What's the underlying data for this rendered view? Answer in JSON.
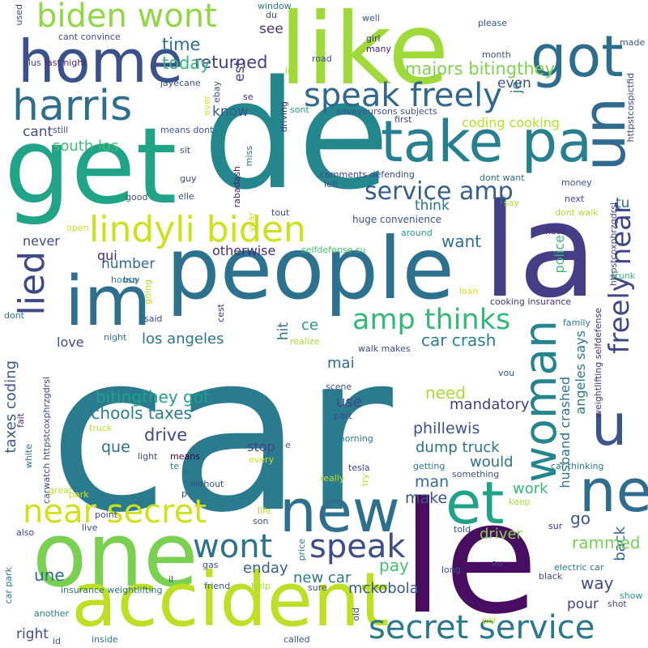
{
  "words": [
    {
      "text": "car",
      "color": "#2a7b8e"
    },
    {
      "text": "de",
      "color": "#25878e"
    },
    {
      "text": "le",
      "color": "#470d60"
    },
    {
      "text": "people",
      "color": "#2c718e"
    },
    {
      "text": "la",
      "color": "#433e85"
    },
    {
      "text": "get",
      "color": "#20a386"
    },
    {
      "text": "like",
      "color": "#9fda3a"
    },
    {
      "text": "one",
      "color": "#7ad151"
    },
    {
      "text": "accident",
      "color": "#bddf26"
    },
    {
      "text": "new",
      "color": "#2d708e"
    },
    {
      "text": "home",
      "color": "#3b518b"
    },
    {
      "text": "im",
      "color": "#2d718e"
    },
    {
      "text": "take pa",
      "color": "#27808e"
    },
    {
      "text": "got",
      "color": "#2d6e8e"
    },
    {
      "text": "un",
      "color": "#306a8e"
    },
    {
      "text": "woman",
      "color": "#25858e"
    },
    {
      "text": "ne",
      "color": "#2e6d8e"
    },
    {
      "text": "et",
      "color": "#1fa287"
    },
    {
      "text": "u",
      "color": "#3a548c"
    },
    {
      "text": "harris",
      "color": "#2e6f8e"
    },
    {
      "text": "biden wont",
      "color": "#8fd744"
    },
    {
      "text": "lied",
      "color": "#3e4989"
    },
    {
      "text": "lindyli biden",
      "color": "#cde11d"
    },
    {
      "text": "near secret",
      "color": "#d0e11c"
    },
    {
      "text": "speak freely",
      "color": "#31688e"
    },
    {
      "text": "wont",
      "color": "#2c728e"
    },
    {
      "text": "speak",
      "color": "#3d4d8a"
    },
    {
      "text": "secret service",
      "color": "#2a788e"
    },
    {
      "text": "freely",
      "color": "#3f4788"
    },
    {
      "text": "near",
      "color": "#3f4788"
    },
    {
      "text": "service amp",
      "color": "#355f8d"
    },
    {
      "text": "amp thinks",
      "color": "#35b779"
    },
    {
      "text": "majors bitingthey",
      "color": "#7fd34e"
    },
    {
      "text": "returned",
      "color": "#424086"
    },
    {
      "text": "time",
      "color": "#2d708e"
    },
    {
      "text": "today",
      "color": "#35b779"
    },
    {
      "text": "see",
      "color": "#46327e"
    },
    {
      "text": "est",
      "color": "#414487"
    },
    {
      "text": "even",
      "color": "#3b518b"
    },
    {
      "text": "je",
      "color": "#2c738e"
    },
    {
      "text": "know",
      "color": "#38588c"
    },
    {
      "text": "cant",
      "color": "#3d4e8a"
    },
    {
      "text": "south los",
      "color": "#3dbc74"
    },
    {
      "text": "coding cooking",
      "color": "#b5de2b"
    },
    {
      "text": "think",
      "color": "#2a768e"
    },
    {
      "text": "never",
      "color": "#3e4a89"
    },
    {
      "text": "want",
      "color": "#2c728e"
    },
    {
      "text": "otherwise",
      "color": "#472d7b"
    },
    {
      "text": "number",
      "color": "#306a8e"
    },
    {
      "text": "police",
      "color": "#3aba76"
    },
    {
      "text": "qui",
      "color": "#472f7d"
    },
    {
      "text": "tu",
      "color": "#306a8e"
    },
    {
      "text": "love",
      "color": "#3e4c8a"
    },
    {
      "text": "los angeles",
      "color": "#2a768e"
    },
    {
      "text": "ce",
      "color": "#1e9b8a"
    },
    {
      "text": "hit",
      "color": "#2b758e"
    },
    {
      "text": "car crash",
      "color": "#26828e"
    },
    {
      "text": "mai",
      "color": "#2e6d8e"
    },
    {
      "text": "angeles says",
      "color": "#29798e"
    },
    {
      "text": "taxes coding",
      "color": "#38588c"
    },
    {
      "text": "bitingthey got",
      "color": "#1fa088"
    },
    {
      "text": "need",
      "color": "#a8db34"
    },
    {
      "text": "mandatory",
      "color": "#423f85"
    },
    {
      "text": "husband crashed",
      "color": "#2c738e"
    },
    {
      "text": "use",
      "color": "#3e4a89"
    },
    {
      "text": "schools taxes",
      "color": "#27808e"
    },
    {
      "text": "phillewis",
      "color": "#3b528b"
    },
    {
      "text": "drive",
      "color": "#3f4889"
    },
    {
      "text": "que",
      "color": "#2e6f8e"
    },
    {
      "text": "dump truck",
      "color": "#2a768e"
    },
    {
      "text": "stop",
      "color": "#404688"
    },
    {
      "text": "would",
      "color": "#2c738e"
    },
    {
      "text": "man",
      "color": "#2e6e8e"
    },
    {
      "text": "work",
      "color": "#35b779"
    },
    {
      "text": "make",
      "color": "#3b528b"
    },
    {
      "text": "go",
      "color": "#38588c"
    },
    {
      "text": "back",
      "color": "#2f6b8e"
    },
    {
      "text": "rammed",
      "color": "#75d054"
    },
    {
      "text": "driver",
      "color": "#84d44b"
    },
    {
      "text": "enday",
      "color": "#35608d"
    },
    {
      "text": "pay",
      "color": "#45bf70"
    },
    {
      "text": "new car",
      "color": "#2a788e"
    },
    {
      "text": "mckobola",
      "color": "#38598c"
    },
    {
      "text": "way",
      "color": "#3e4a89"
    },
    {
      "text": "une",
      "color": "#2e6e8e"
    },
    {
      "text": "pour",
      "color": "#414487"
    },
    {
      "text": "right",
      "color": "#3d4e8a"
    },
    {
      "text": "insurance weightlifting",
      "color": "#2d708e"
    },
    {
      "text": "huge convenience",
      "color": "#3b528b"
    },
    {
      "text": "selfdefense su",
      "color": "#46c06f"
    },
    {
      "text": "cooking insurance",
      "color": "#45337d"
    },
    {
      "text": "httpstcospictfid",
      "color": "#3f4889"
    },
    {
      "text": "httpstcoxphrzgdrsl",
      "color": "#3f4889"
    },
    {
      "text": "weightlifting selfdefense",
      "color": "#46337e"
    },
    {
      "text": "saveyoursons subjects",
      "color": "#3b528b"
    },
    {
      "text": "comments defending",
      "color": "#404588"
    },
    {
      "text": "carwatch httpstcoxphrzgdrsl",
      "color": "#3e4989"
    },
    {
      "text": "plus",
      "color": "#404588"
    },
    {
      "text": "last night",
      "color": "#482475"
    },
    {
      "text": "jayecane",
      "color": "#3b518b"
    },
    {
      "text": "cant convince",
      "color": "#3e4c8a"
    },
    {
      "text": "girl",
      "color": "#453581"
    },
    {
      "text": "well",
      "color": "#3a548c"
    },
    {
      "text": "please",
      "color": "#3a548c"
    },
    {
      "text": "month",
      "color": "#3b528b"
    },
    {
      "text": "made",
      "color": "#38588c"
    },
    {
      "text": "many",
      "color": "#481f70"
    },
    {
      "text": "window",
      "color": "#2a788e"
    },
    {
      "text": "du",
      "color": "#3e4a89"
    },
    {
      "text": "used",
      "color": "#3e4989"
    },
    {
      "text": "road",
      "color": "#3d4e8a"
    },
    {
      "text": "let",
      "color": "#a2da37"
    },
    {
      "text": "ever",
      "color": "#c5e021"
    },
    {
      "text": "ebay",
      "color": "#3e4c8a"
    },
    {
      "text": "se",
      "color": "#472c7a"
    },
    {
      "text": "sont",
      "color": "#1f9e89"
    },
    {
      "text": "driving",
      "color": "#453781"
    },
    {
      "text": "first",
      "color": "#424186"
    },
    {
      "text": "still",
      "color": "#3b528b"
    },
    {
      "text": "means dont",
      "color": "#3b528b"
    },
    {
      "text": "sit",
      "color": "#3e4a89"
    },
    {
      "text": "guy",
      "color": "#404688"
    },
    {
      "text": "rabadash",
      "color": "#482071"
    },
    {
      "text": "miss",
      "color": "#2d718e"
    },
    {
      "text": "left",
      "color": "#3b528b"
    },
    {
      "text": "dont want",
      "color": "#2f6b8e"
    },
    {
      "text": "money",
      "color": "#3a548c"
    },
    {
      "text": "next",
      "color": "#414487"
    },
    {
      "text": "dont walk",
      "color": "#b0dd2f"
    },
    {
      "text": "say",
      "color": "#b8de29"
    },
    {
      "text": "elle",
      "color": "#3b528b"
    },
    {
      "text": "good",
      "color": "#3e4989"
    },
    {
      "text": "open",
      "color": "#cae11f"
    },
    {
      "text": "year",
      "color": "#c5e021"
    },
    {
      "text": "tout",
      "color": "#404688"
    },
    {
      "text": "around",
      "color": "#1f9e89"
    },
    {
      "text": "hate",
      "color": "#482878"
    },
    {
      "text": "trunk",
      "color": "#37b878"
    },
    {
      "text": "buy",
      "color": "#3b528b"
    },
    {
      "text": "house",
      "color": "#26828e"
    },
    {
      "text": "going",
      "color": "#b5de2b"
    },
    {
      "text": "loan",
      "color": "#d2e21b"
    },
    {
      "text": "dont",
      "color": "#2d718e"
    },
    {
      "text": "said",
      "color": "#3e4a89"
    },
    {
      "text": "cest",
      "color": "#46337e"
    },
    {
      "text": "night",
      "color": "#2a788e"
    },
    {
      "text": "realize",
      "color": "#aadc32"
    },
    {
      "text": "family",
      "color": "#2a788e"
    },
    {
      "text": "walk makes",
      "color": "#3e4a89"
    },
    {
      "text": "vou",
      "color": "#3b528b"
    },
    {
      "text": "fait",
      "color": "#472c7a"
    },
    {
      "text": "scene",
      "color": "#3b528b"
    },
    {
      "text": "part",
      "color": "#3e4a89"
    },
    {
      "text": "white",
      "color": "#2c738e"
    },
    {
      "text": "truck",
      "color": "#c2df23"
    },
    {
      "text": "morning",
      "color": "#2a788e"
    },
    {
      "text": "light",
      "color": "#3e4a89"
    },
    {
      "text": "means",
      "color": "#440154"
    },
    {
      "text": "e",
      "color": "#33628d"
    },
    {
      "text": "every",
      "color": "#d0e11c"
    },
    {
      "text": "te",
      "color": "#26828e"
    },
    {
      "text": "tesla",
      "color": "#414487"
    },
    {
      "text": "getting",
      "color": "#2a788e"
    },
    {
      "text": "something",
      "color": "#3b528b"
    },
    {
      "text": "car thinking",
      "color": "#2a788e"
    },
    {
      "text": "try",
      "color": "#b8de29"
    },
    {
      "text": "really",
      "color": "#c2df23"
    },
    {
      "text": "great",
      "color": "#c2df23"
    },
    {
      "text": "park",
      "color": "#d5e21a"
    },
    {
      "text": "without",
      "color": "#3b528b"
    },
    {
      "text": "p",
      "color": "#3e4a89"
    },
    {
      "text": "keep",
      "color": "#aadc32"
    },
    {
      "text": "point",
      "color": "#3e4989"
    },
    {
      "text": "life",
      "color": "#aadc32"
    },
    {
      "text": "son",
      "color": "#3b528b"
    },
    {
      "text": "live",
      "color": "#3e4a89"
    },
    {
      "text": "sur",
      "color": "#46337e"
    },
    {
      "text": "also",
      "color": "#3e4a89"
    },
    {
      "text": "price",
      "color": "#2a788e"
    },
    {
      "text": "told",
      "color": "#3e4a89"
    },
    {
      "text": "gas",
      "color": "#3b528b"
    },
    {
      "text": "au",
      "color": "#414487"
    },
    {
      "text": "electric car",
      "color": "#2a788e"
    },
    {
      "text": "il",
      "color": "#3e4a89"
    },
    {
      "text": "friend",
      "color": "#3b528b"
    },
    {
      "text": "help",
      "color": "#aadc32"
    },
    {
      "text": "long",
      "color": "#3b528b"
    },
    {
      "text": "black",
      "color": "#3e4a89"
    },
    {
      "text": "car park",
      "color": "#2a788e"
    },
    {
      "text": "sure",
      "color": "#3b528b"
    },
    {
      "text": "old",
      "color": "#3e4a89"
    },
    {
      "text": "show",
      "color": "#1f9e89"
    },
    {
      "text": "shot",
      "color": "#3e4a89"
    },
    {
      "text": "another",
      "color": "#2a788e"
    },
    {
      "text": "par",
      "color": "#d0e11c"
    },
    {
      "text": "id",
      "color": "#3b528b"
    },
    {
      "text": "inside",
      "color": "#2a788e"
    },
    {
      "text": "called",
      "color": "#3b528b"
    }
  ]
}
